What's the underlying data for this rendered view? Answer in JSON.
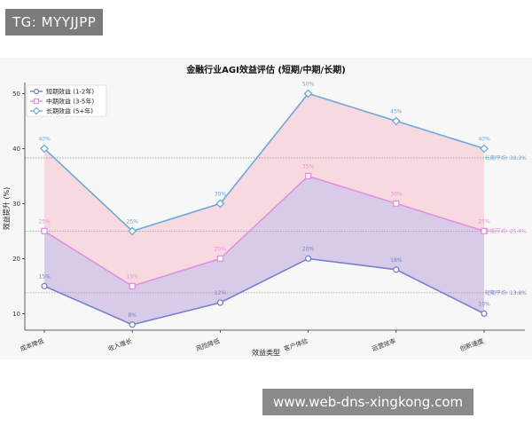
{
  "watermark_top": "TG: MYYJJPP",
  "watermark_bottom": "www.web-dns-xingkong.com",
  "chart_data": {
    "type": "area",
    "title": "金融行业AGI效益评估 (短期/中期/长期)",
    "xlabel": "效益类型",
    "ylabel": "效益提升 (%)",
    "categories": [
      "成本降低",
      "收入增长",
      "风险降低",
      "客户体验",
      "运营效率",
      "创新速度"
    ],
    "ylim": [
      7,
      52
    ],
    "yticks": [
      10,
      20,
      30,
      40,
      50
    ],
    "grid": false,
    "legend_position": "top-left",
    "series": [
      {
        "name": "短期效益 (1-2年)",
        "values": [
          15,
          8,
          12,
          20,
          18,
          10
        ],
        "labels": [
          "15%",
          "8%",
          "12%",
          "20%",
          "18%",
          "10%"
        ],
        "color": "#7b7fd0",
        "fill": "#c9c8e8",
        "marker": "circle"
      },
      {
        "name": "中期效益 (3-5年)",
        "values": [
          25,
          15,
          20,
          35,
          30,
          25
        ],
        "labels": [
          "25%",
          "15%",
          "20%",
          "35%",
          "30%",
          "25%"
        ],
        "color": "#e58fe0",
        "fill": "#e8c8e6",
        "marker": "square"
      },
      {
        "name": "长期效益 (5+年)",
        "values": [
          40,
          25,
          30,
          50,
          45,
          40
        ],
        "labels": [
          "40%",
          "25%",
          "30%",
          "50%",
          "45%",
          "40%"
        ],
        "color": "#6fa8d8",
        "fill": "#f7d3dc",
        "marker": "diamond"
      }
    ],
    "averages": [
      {
        "label": "长期平均: 38.3%",
        "value": 38.3,
        "color": "#6fa8d8"
      },
      {
        "label": "中期平均: 25.0%",
        "value": 25.0,
        "color": "#e58fe0"
      },
      {
        "label": "短期平均: 13.8%",
        "value": 13.8,
        "color": "#7b7fd0"
      }
    ]
  }
}
